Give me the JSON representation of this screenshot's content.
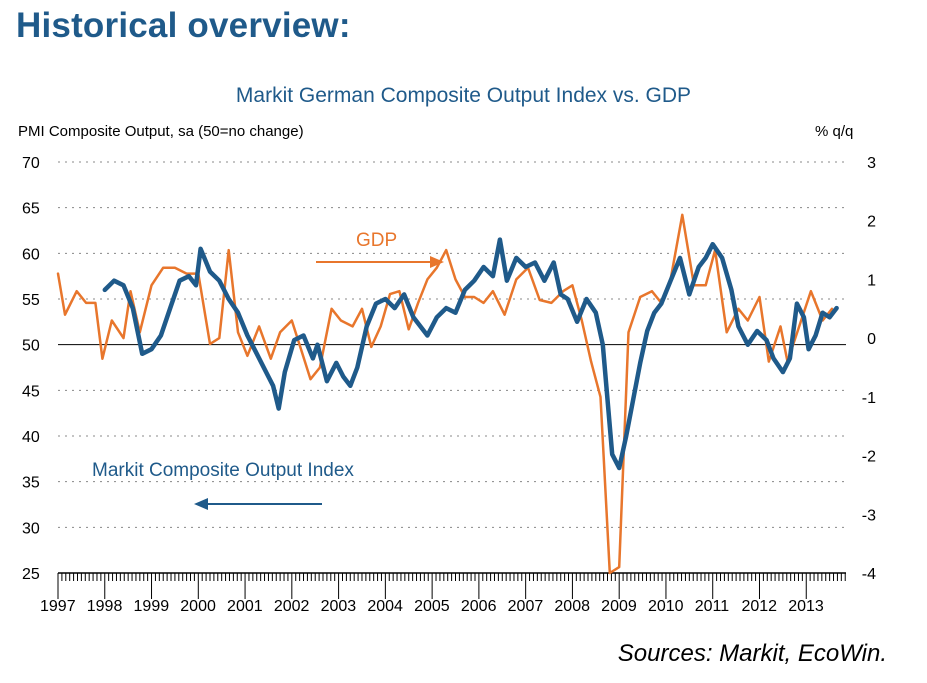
{
  "page": {
    "heading": "Historical overview:",
    "source": "Sources: Markit, EcoWin."
  },
  "colors": {
    "pmi": "#1f5a8a",
    "gdp": "#e8762c",
    "heading": "#1f5a8a",
    "grid": "#888888"
  },
  "chart_data": {
    "type": "line",
    "title": "Markit German Composite Output Index vs. GDP",
    "ylabel_left": "PMI Composite Output, sa (50=no change)",
    "ylabel_right": "% q/q",
    "ylim_left": [
      25,
      70
    ],
    "ylim_right": [
      -4,
      3
    ],
    "yticks_left": [
      70,
      65,
      60,
      55,
      50,
      45,
      40,
      35,
      30,
      25
    ],
    "yticks_right": [
      "3",
      "2",
      "1",
      "0",
      "-1",
      "-2",
      "-3",
      "-4"
    ],
    "x_categories": [
      "1997",
      "1998",
      "1999",
      "2000",
      "2001",
      "2002",
      "2003",
      "2004",
      "2005",
      "2006",
      "2007",
      "2008",
      "2009",
      "2010",
      "2011",
      "2012",
      "2013"
    ],
    "grid": "dotted horizontal",
    "annotations": [
      {
        "text": "GDP",
        "series": "gdp"
      },
      {
        "text": "Markit Composite Output Index",
        "series": "pmi"
      }
    ],
    "series": [
      {
        "name": "Markit Composite Output Index",
        "axis": "left",
        "points": [
          [
            1998.0,
            56.0
          ],
          [
            1998.2,
            57.0
          ],
          [
            1998.4,
            56.5
          ],
          [
            1998.6,
            54.0
          ],
          [
            1998.8,
            49.0
          ],
          [
            1999.0,
            49.5
          ],
          [
            1999.2,
            51.0
          ],
          [
            1999.4,
            54.0
          ],
          [
            1999.6,
            57.0
          ],
          [
            1999.8,
            57.5
          ],
          [
            1999.95,
            56.5
          ],
          [
            2000.05,
            60.5
          ],
          [
            2000.25,
            58.0
          ],
          [
            2000.45,
            57.0
          ],
          [
            2000.65,
            55.0
          ],
          [
            2000.85,
            53.5
          ],
          [
            2001.05,
            51.0
          ],
          [
            2001.25,
            49.0
          ],
          [
            2001.45,
            47.0
          ],
          [
            2001.6,
            45.5
          ],
          [
            2001.72,
            43.0
          ],
          [
            2001.85,
            47.0
          ],
          [
            2002.05,
            50.5
          ],
          [
            2002.25,
            51.0
          ],
          [
            2002.45,
            48.5
          ],
          [
            2002.55,
            50.0
          ],
          [
            2002.75,
            46.0
          ],
          [
            2002.95,
            48.0
          ],
          [
            2003.1,
            46.5
          ],
          [
            2003.25,
            45.5
          ],
          [
            2003.4,
            47.5
          ],
          [
            2003.6,
            52.0
          ],
          [
            2003.8,
            54.5
          ],
          [
            2004.0,
            55.0
          ],
          [
            2004.2,
            54.0
          ],
          [
            2004.4,
            55.5
          ],
          [
            2004.6,
            53.0
          ],
          [
            2004.75,
            52.0
          ],
          [
            2004.9,
            51.0
          ],
          [
            2005.1,
            53.0
          ],
          [
            2005.3,
            54.0
          ],
          [
            2005.5,
            53.5
          ],
          [
            2005.7,
            56.0
          ],
          [
            2005.9,
            57.0
          ],
          [
            2006.1,
            58.5
          ],
          [
            2006.3,
            57.5
          ],
          [
            2006.45,
            61.5
          ],
          [
            2006.6,
            57.0
          ],
          [
            2006.8,
            59.5
          ],
          [
            2007.0,
            58.5
          ],
          [
            2007.2,
            59.0
          ],
          [
            2007.4,
            57.0
          ],
          [
            2007.6,
            59.0
          ],
          [
            2007.75,
            55.5
          ],
          [
            2007.9,
            55.0
          ],
          [
            2008.1,
            52.5
          ],
          [
            2008.3,
            55.0
          ],
          [
            2008.5,
            53.5
          ],
          [
            2008.65,
            50.0
          ],
          [
            2008.75,
            44.0
          ],
          [
            2008.85,
            38.0
          ],
          [
            2009.0,
            36.5
          ],
          [
            2009.15,
            40.0
          ],
          [
            2009.3,
            44.0
          ],
          [
            2009.45,
            48.0
          ],
          [
            2009.6,
            51.5
          ],
          [
            2009.75,
            53.5
          ],
          [
            2009.9,
            54.5
          ],
          [
            2010.1,
            57.0
          ],
          [
            2010.3,
            59.5
          ],
          [
            2010.5,
            55.5
          ],
          [
            2010.7,
            58.5
          ],
          [
            2010.85,
            59.5
          ],
          [
            2011.0,
            61.0
          ],
          [
            2011.2,
            59.5
          ],
          [
            2011.4,
            56.0
          ],
          [
            2011.55,
            52.0
          ],
          [
            2011.75,
            50.0
          ],
          [
            2011.95,
            51.5
          ],
          [
            2012.15,
            50.5
          ],
          [
            2012.3,
            48.5
          ],
          [
            2012.5,
            47.0
          ],
          [
            2012.65,
            48.5
          ],
          [
            2012.8,
            54.5
          ],
          [
            2012.95,
            53.0
          ],
          [
            2013.05,
            49.5
          ],
          [
            2013.2,
            51.0
          ],
          [
            2013.35,
            53.5
          ],
          [
            2013.5,
            53.0
          ],
          [
            2013.65,
            54.0
          ]
        ]
      },
      {
        "name": "GDP",
        "axis": "right",
        "points": [
          [
            1997.0,
            1.1
          ],
          [
            1997.15,
            0.4
          ],
          [
            1997.4,
            0.8
          ],
          [
            1997.6,
            0.6
          ],
          [
            1997.8,
            0.6
          ],
          [
            1997.95,
            -0.35
          ],
          [
            1998.15,
            0.3
          ],
          [
            1998.4,
            0.0
          ],
          [
            1998.55,
            0.8
          ],
          [
            1998.75,
            0.1
          ],
          [
            1999.0,
            0.9
          ],
          [
            1999.25,
            1.2
          ],
          [
            1999.5,
            1.2
          ],
          [
            1999.75,
            1.1
          ],
          [
            2000.0,
            1.1
          ],
          [
            2000.25,
            -0.1
          ],
          [
            2000.45,
            0.0
          ],
          [
            2000.65,
            1.5
          ],
          [
            2000.85,
            0.1
          ],
          [
            2001.05,
            -0.3
          ],
          [
            2001.3,
            0.2
          ],
          [
            2001.55,
            -0.35
          ],
          [
            2001.75,
            0.1
          ],
          [
            2002.0,
            0.3
          ],
          [
            2002.2,
            -0.2
          ],
          [
            2002.4,
            -0.7
          ],
          [
            2002.6,
            -0.5
          ],
          [
            2002.85,
            0.5
          ],
          [
            2003.05,
            0.3
          ],
          [
            2003.3,
            0.2
          ],
          [
            2003.5,
            0.5
          ],
          [
            2003.7,
            -0.15
          ],
          [
            2003.9,
            0.2
          ],
          [
            2004.1,
            0.75
          ],
          [
            2004.3,
            0.8
          ],
          [
            2004.5,
            0.15
          ],
          [
            2004.7,
            0.6
          ],
          [
            2004.9,
            1.0
          ],
          [
            2005.1,
            1.2
          ],
          [
            2005.3,
            1.5
          ],
          [
            2005.5,
            1.0
          ],
          [
            2005.7,
            0.7
          ],
          [
            2005.9,
            0.7
          ],
          [
            2006.1,
            0.6
          ],
          [
            2006.3,
            0.8
          ],
          [
            2006.55,
            0.4
          ],
          [
            2006.8,
            1.0
          ],
          [
            2007.05,
            1.2
          ],
          [
            2007.3,
            0.65
          ],
          [
            2007.55,
            0.6
          ],
          [
            2007.8,
            0.8
          ],
          [
            2008.0,
            0.9
          ],
          [
            2008.2,
            0.3
          ],
          [
            2008.4,
            -0.4
          ],
          [
            2008.6,
            -1.0
          ],
          [
            2008.8,
            -4.0
          ],
          [
            2009.0,
            -3.9
          ],
          [
            2009.2,
            0.1
          ],
          [
            2009.45,
            0.7
          ],
          [
            2009.7,
            0.8
          ],
          [
            2009.9,
            0.6
          ],
          [
            2010.1,
            1.0
          ],
          [
            2010.35,
            2.1
          ],
          [
            2010.6,
            0.9
          ],
          [
            2010.85,
            0.9
          ],
          [
            2011.05,
            1.5
          ],
          [
            2011.3,
            0.1
          ],
          [
            2011.55,
            0.5
          ],
          [
            2011.75,
            0.3
          ],
          [
            2012.0,
            0.7
          ],
          [
            2012.2,
            -0.4
          ],
          [
            2012.45,
            0.2
          ],
          [
            2012.6,
            -0.4
          ],
          [
            2012.85,
            0.2
          ],
          [
            2013.1,
            0.8
          ],
          [
            2013.35,
            0.3
          ],
          [
            2013.55,
            0.5
          ]
        ]
      }
    ]
  }
}
